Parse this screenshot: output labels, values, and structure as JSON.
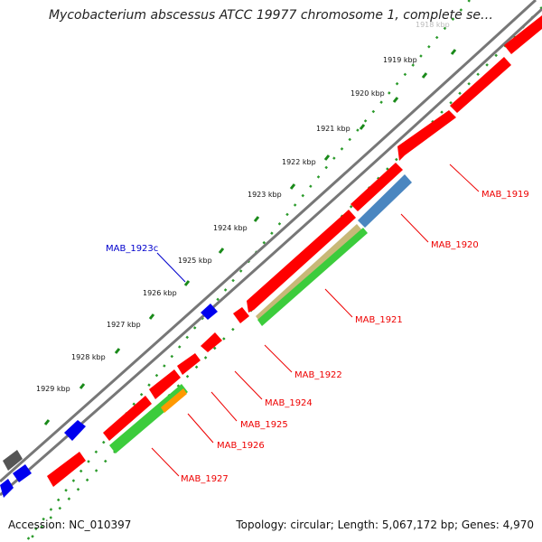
{
  "map": {
    "title": "Mycobacterium abscessus ATCC 19977 chromosome 1, complete se…",
    "accession": "Accession: NC_010397",
    "summary": "Topology: circular; Length: 5,067,172 bp; Genes: 4,970"
  },
  "ruler": {
    "labels": [
      "1918 kbp",
      "1919 kbp",
      "1920 kbp",
      "1921 kbp",
      "1922 kbp",
      "1923 kbp",
      "1924 kbp",
      "1925 kbp",
      "1926 kbp",
      "1927 kbp",
      "1928 kbp",
      "1929 kbp"
    ]
  },
  "genes": [
    {
      "label": "MAB_1919",
      "color": "#ff0000"
    },
    {
      "label": "MAB_1920",
      "color": "#ff0000"
    },
    {
      "label": "MAB_1921",
      "color": "#ff0000"
    },
    {
      "label": "MAB_1922",
      "color": "#ff0000"
    },
    {
      "label": "MAB_1923c",
      "color": "#0000cc"
    },
    {
      "label": "MAB_1924",
      "color": "#ff0000"
    },
    {
      "label": "MAB_1925",
      "color": "#ff0000"
    },
    {
      "label": "MAB_1926",
      "color": "#ff0000"
    },
    {
      "label": "MAB_1927",
      "color": "#ff0000"
    }
  ],
  "colors": {
    "forward_gene": "#ff0000",
    "reverse_gene": "#0000ee",
    "backbone": "#888888",
    "tick": "#1a8a1a",
    "feature_green": "#33cc33",
    "feature_steelblue": "#4a86c0",
    "feature_tan": "#c8b878",
    "feature_orange": "#ff9900"
  }
}
